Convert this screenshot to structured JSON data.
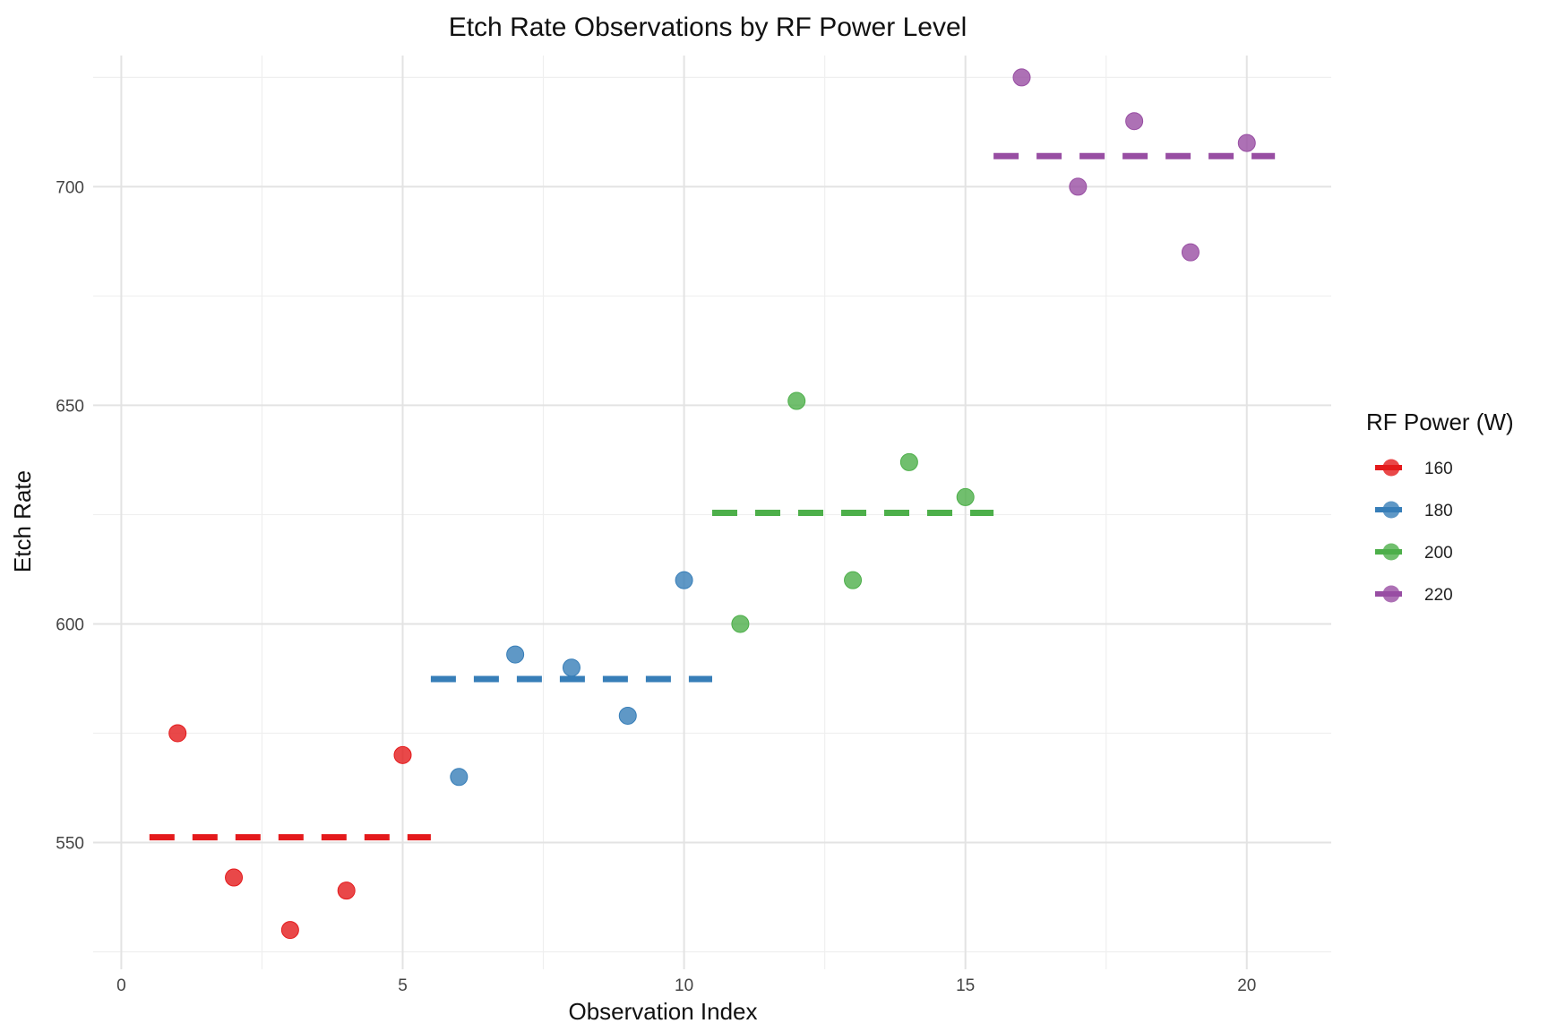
{
  "chart_data": {
    "type": "scatter",
    "title": "Etch Rate Observations by RF Power Level",
    "xlabel": "Observation Index",
    "ylabel": "Etch Rate",
    "xlim": [
      -0.5,
      21.5
    ],
    "ylim": [
      521,
      730
    ],
    "x_ticks": [
      0,
      5,
      10,
      15,
      20
    ],
    "y_ticks": [
      550,
      600,
      650,
      700
    ],
    "grid": true,
    "legend": {
      "title": "RF Power (W)",
      "position": "right"
    },
    "series": [
      {
        "name": "160",
        "color": "#E41A1C",
        "points": [
          {
            "x": 1,
            "y": 575
          },
          {
            "x": 2,
            "y": 542
          },
          {
            "x": 3,
            "y": 530
          },
          {
            "x": 4,
            "y": 539
          },
          {
            "x": 5,
            "y": 570
          }
        ],
        "mean": 551.2,
        "mean_x_range": [
          0.5,
          5.5
        ]
      },
      {
        "name": "180",
        "color": "#377EB8",
        "points": [
          {
            "x": 6,
            "y": 565
          },
          {
            "x": 7,
            "y": 593
          },
          {
            "x": 8,
            "y": 590
          },
          {
            "x": 9,
            "y": 579
          },
          {
            "x": 10,
            "y": 610
          }
        ],
        "mean": 587.4,
        "mean_x_range": [
          5.5,
          10.5
        ]
      },
      {
        "name": "200",
        "color": "#4DAF4A",
        "points": [
          {
            "x": 11,
            "y": 600
          },
          {
            "x": 12,
            "y": 651
          },
          {
            "x": 13,
            "y": 610
          },
          {
            "x": 14,
            "y": 637
          },
          {
            "x": 15,
            "y": 629
          }
        ],
        "mean": 625.4,
        "mean_x_range": [
          10.5,
          15.5
        ]
      },
      {
        "name": "220",
        "color": "#984EA3",
        "points": [
          {
            "x": 16,
            "y": 725
          },
          {
            "x": 17,
            "y": 700
          },
          {
            "x": 18,
            "y": 715
          },
          {
            "x": 19,
            "y": 685
          },
          {
            "x": 20,
            "y": 710
          }
        ],
        "mean": 707.0,
        "mean_x_range": [
          15.5,
          20.5
        ]
      }
    ]
  }
}
